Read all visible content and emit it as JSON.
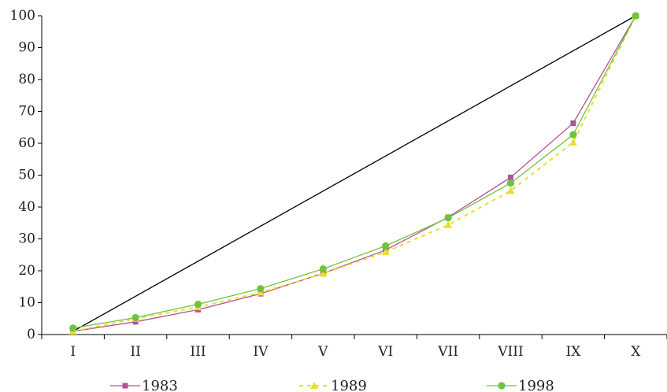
{
  "chart_data": {
    "type": "line",
    "categories": [
      "I",
      "II",
      "III",
      "IV",
      "V",
      "VI",
      "VII",
      "VIII",
      "IX",
      "X"
    ],
    "ylim": [
      0,
      100
    ],
    "yticks": [
      0,
      10,
      20,
      30,
      40,
      50,
      60,
      70,
      80,
      90,
      100
    ],
    "grid": false,
    "legend_position": "bottom",
    "series": [
      {
        "name": "1983",
        "values": [
          1,
          4,
          7.8,
          12.8,
          19.2,
          26.5,
          36.8,
          49.3,
          66.3,
          100
        ],
        "color": "#b5509b",
        "marker": "square",
        "dash": "solid"
      },
      {
        "name": "1989",
        "values": [
          1,
          5,
          8.6,
          13.2,
          19.1,
          25.9,
          34.4,
          45.1,
          60.3,
          100
        ],
        "color": "#e6e030",
        "marker": "triangle",
        "dash": "dashed"
      },
      {
        "name": "1998",
        "values": [
          2,
          5.3,
          9.5,
          14.4,
          20.6,
          27.8,
          36.6,
          47.5,
          62.7,
          100
        ],
        "color": "#6ec43c",
        "marker": "circle",
        "dash": "solid"
      }
    ],
    "reference_line": {
      "from": [
        "I",
        1
      ],
      "to": [
        "X",
        100
      ],
      "color": "#000000"
    }
  }
}
